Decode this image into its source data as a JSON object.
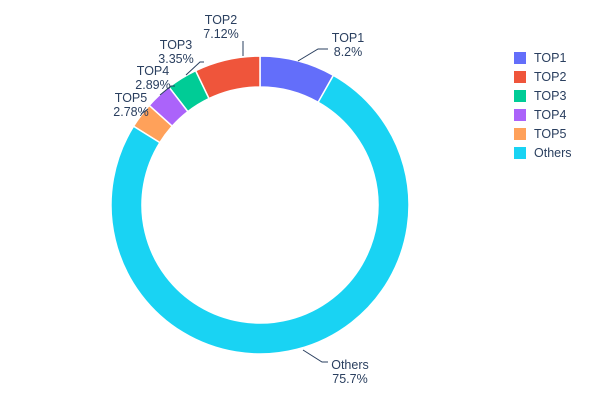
{
  "chart_data": {
    "type": "pie",
    "subtype": "donut",
    "hole_ratio": 0.79,
    "title": "",
    "labels": [
      "TOP1",
      "TOP2",
      "TOP3",
      "TOP4",
      "TOP5",
      "Others"
    ],
    "values": [
      8.2,
      7.12,
      3.35,
      2.89,
      2.78,
      75.7
    ],
    "percent_labels": [
      "8.2%",
      "7.12%",
      "3.35%",
      "2.89%",
      "2.78%",
      "75.7%"
    ],
    "colors": [
      "#636EFA",
      "#EF553B",
      "#00CC96",
      "#AB63FA",
      "#FFA15A",
      "#19D3F3"
    ],
    "text_color": "#2A3F5F",
    "background_color": "#FFFFFF",
    "legend": {
      "position": "right",
      "entries": [
        "TOP1",
        "TOP2",
        "TOP3",
        "TOP4",
        "TOP5",
        "Others"
      ]
    }
  }
}
